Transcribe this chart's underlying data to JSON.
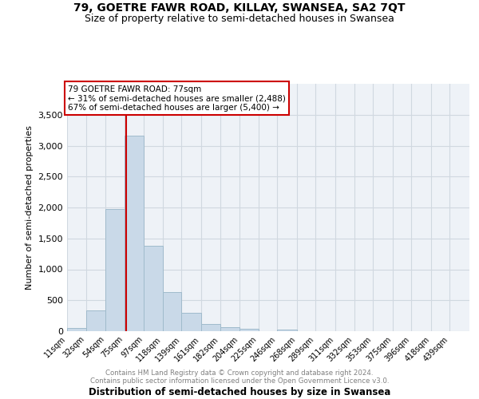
{
  "title": "79, GOETRE FAWR ROAD, KILLAY, SWANSEA, SA2 7QT",
  "subtitle": "Size of property relative to semi-detached houses in Swansea",
  "xlabel": "Distribution of semi-detached houses by size in Swansea",
  "ylabel": "Number of semi-detached properties",
  "footer_line1": "Contains HM Land Registry data © Crown copyright and database right 2024.",
  "footer_line2": "Contains public sector information licensed under the Open Government Licence v3.0.",
  "bin_labels": [
    "11sqm",
    "32sqm",
    "54sqm",
    "75sqm",
    "97sqm",
    "118sqm",
    "139sqm",
    "161sqm",
    "182sqm",
    "204sqm",
    "225sqm",
    "246sqm",
    "268sqm",
    "289sqm",
    "311sqm",
    "332sqm",
    "353sqm",
    "375sqm",
    "396sqm",
    "418sqm",
    "439sqm"
  ],
  "bin_edges": [
    11,
    32,
    54,
    75,
    97,
    118,
    139,
    161,
    182,
    204,
    225,
    246,
    268,
    289,
    311,
    332,
    353,
    375,
    396,
    418,
    439
  ],
  "bar_heights": [
    50,
    340,
    1970,
    3160,
    1380,
    635,
    300,
    120,
    70,
    40,
    0,
    30,
    0,
    0,
    0,
    0,
    0,
    0,
    0,
    0
  ],
  "bar_color": "#c9d9e8",
  "bar_edgecolor": "#a0bbcc",
  "property_size": 77,
  "property_label": "79 GOETRE FAWR ROAD: 77sqm",
  "pct_smaller": 31,
  "n_smaller": "2,488",
  "pct_larger": 67,
  "n_larger": "5,400",
  "vline_color": "#cc0000",
  "annotation_box_edgecolor": "#cc0000",
  "ylim": [
    0,
    4000
  ],
  "yticks": [
    0,
    500,
    1000,
    1500,
    2000,
    2500,
    3000,
    3500
  ],
  "grid_color": "#d0d8e0",
  "bg_color": "#eef2f7",
  "title_fontsize": 10,
  "subtitle_fontsize": 9
}
